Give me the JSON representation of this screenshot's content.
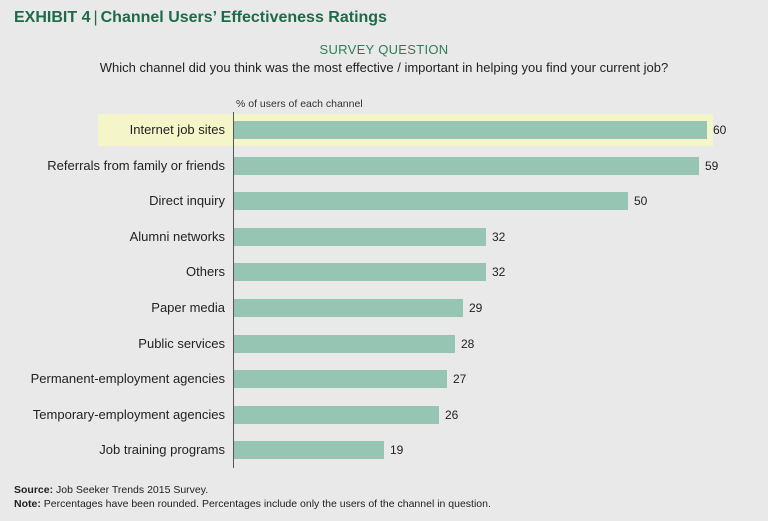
{
  "header": {
    "exhibit": "EXHIBIT 4",
    "separator": "|",
    "title": "Channel Users’ Effectiveness Ratings",
    "survey_label": "SURVEY QUESTION",
    "question": "Which channel did you think was the most  effective / important in helping you find your current job?"
  },
  "chart_data": {
    "type": "bar",
    "orientation": "horizontal",
    "title": "Channel Users’ Effectiveness Ratings",
    "xlabel": "% of users of each channel",
    "ylabel": "",
    "categories": [
      "Internet job sites",
      "Referrals from family or friends",
      "Direct inquiry",
      "Alumni networks",
      "Others",
      "Paper media",
      "Public services",
      "Permanent-employment agencies",
      "Temporary-employment agencies",
      "Job training programs"
    ],
    "values": [
      60,
      59,
      50,
      32,
      32,
      29,
      28,
      27,
      26,
      19
    ],
    "highlighted_category": "Internet job sites",
    "xlim": [
      0,
      60
    ],
    "grid": false,
    "colors": {
      "bar": "#96c6b3",
      "highlight": "#f4f6c9"
    }
  },
  "footer": {
    "source_label": "Source:",
    "source_text": "Job Seeker Trends 2015 Survey.",
    "note_label": "Note:",
    "note_text": "Percentages have been rounded. Percentages include only the users of the channel in question."
  },
  "colors": {
    "accent": "#1e6b4a",
    "background": "#e8e9e8"
  }
}
